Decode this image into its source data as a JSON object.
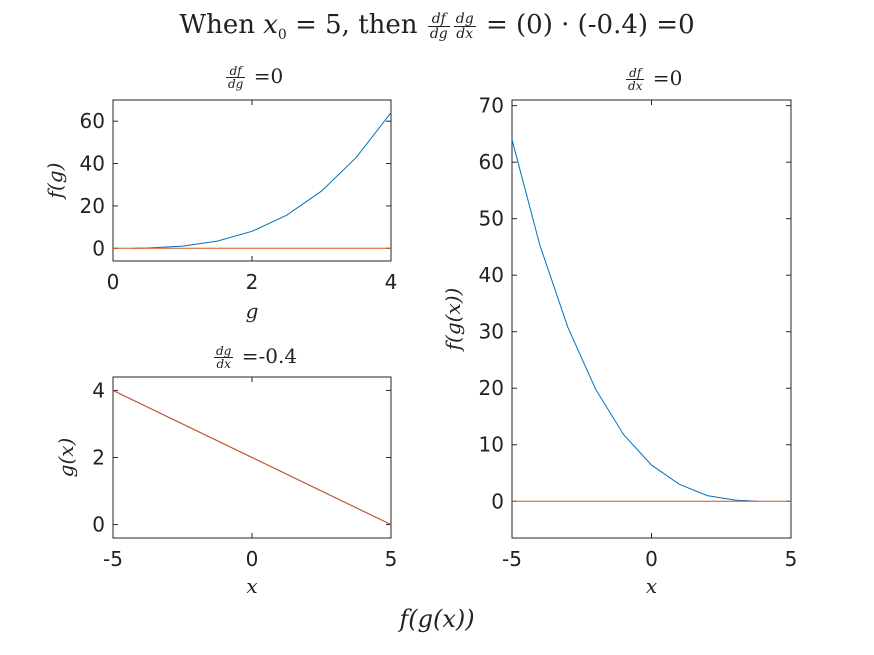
{
  "figure": {
    "title_prefix": "When ",
    "title_var": "x",
    "title_sub": "0",
    "title_mid": " = 5, then ",
    "title_frac1_num": "df",
    "title_frac1_den": "dg",
    "title_frac2_num": "dg",
    "title_frac2_den": "dx",
    "title_suffix": " = (0) · (-0.4) =0",
    "footer_label": "f(g(x))"
  },
  "colors": {
    "blue": "#0072BD",
    "orange": "#D95319",
    "axis": "#262626"
  },
  "chart_data": [
    {
      "id": "fg",
      "type": "line",
      "title_num": "df",
      "title_den": "dg",
      "title_suffix": " =0",
      "xlabel": "g",
      "ylabel": "f(g)",
      "xlim": [
        0,
        4
      ],
      "ylim": [
        -6,
        70
      ],
      "xticks": [
        0,
        2,
        4
      ],
      "yticks": [
        0,
        20,
        40,
        60
      ],
      "series": [
        {
          "color": "#0072BD",
          "x": [
            0.3,
            0.5,
            1,
            1.5,
            2,
            2.5,
            3,
            3.5,
            4
          ],
          "y": [
            0.027,
            0.125,
            1,
            3.375,
            8,
            15.625,
            27,
            42.875,
            64
          ]
        },
        {
          "color": "#D95319",
          "x": [
            0,
            4
          ],
          "y": [
            0,
            0
          ]
        }
      ]
    },
    {
      "id": "gx",
      "type": "line",
      "title_num": "dg",
      "title_den": "dx",
      "title_suffix": " =-0.4",
      "xlabel": "x",
      "ylabel": "g(x)",
      "xlim": [
        -5,
        5
      ],
      "ylim": [
        -0.4,
        4.4
      ],
      "xticks": [
        -5,
        0,
        5
      ],
      "yticks": [
        0,
        2,
        4
      ],
      "series": [
        {
          "color": "#0072BD",
          "x": [
            -5,
            5
          ],
          "y": [
            4,
            0
          ]
        },
        {
          "color": "#D95319",
          "x": [
            -5,
            5
          ],
          "y": [
            4,
            0
          ]
        }
      ]
    },
    {
      "id": "fgx",
      "type": "line",
      "title_num": "df",
      "title_den": "dx",
      "title_suffix": " =0",
      "xlabel": "x",
      "ylabel": "f(g(x))",
      "xlim": [
        -5,
        5
      ],
      "ylim": [
        -6.5,
        71
      ],
      "xticks": [
        -5,
        0,
        5
      ],
      "yticks": [
        0,
        10,
        20,
        30,
        40,
        50,
        60,
        70
      ],
      "series": [
        {
          "color": "#0072BD",
          "x": [
            -5,
            -4,
            -3,
            -2,
            -1,
            0,
            1,
            2,
            3,
            3.8
          ],
          "y": [
            64,
            45.3,
            30.8,
            19.8,
            11.8,
            6.4,
            3.0,
            1.0,
            0.2,
            0
          ]
        },
        {
          "color": "#D95319",
          "x": [
            -5,
            5
          ],
          "y": [
            0,
            0
          ]
        }
      ]
    }
  ]
}
